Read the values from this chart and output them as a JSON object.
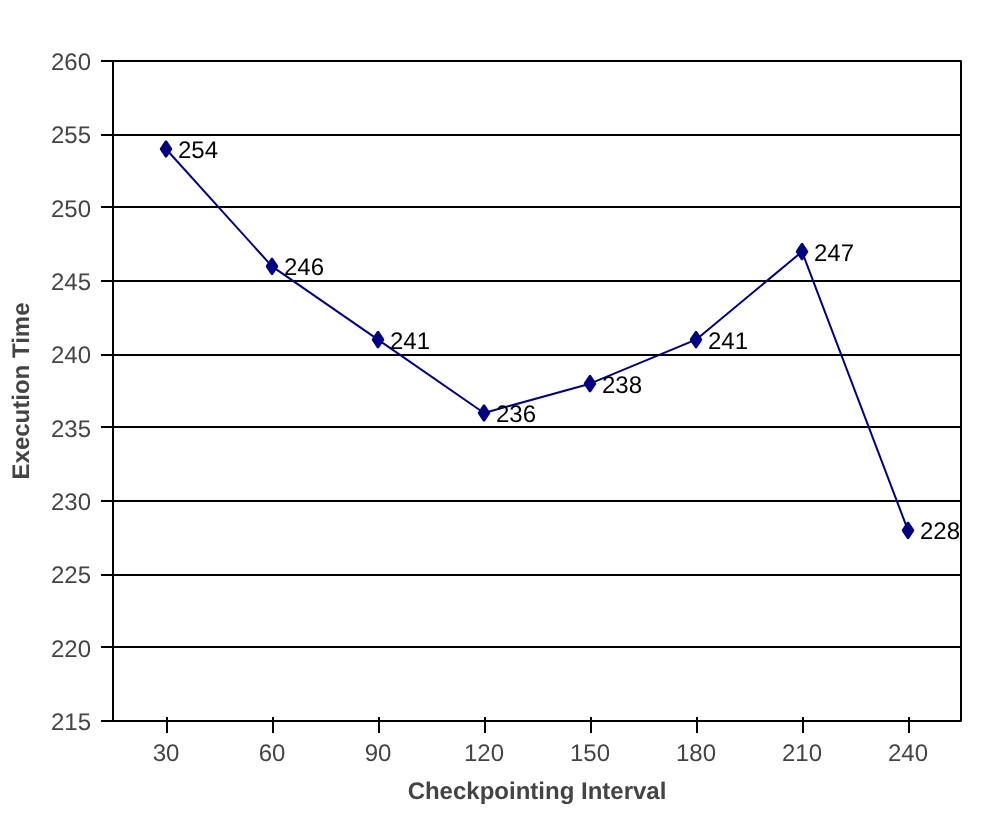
{
  "chart_data": {
    "type": "line",
    "xlabel": "Checkpointing Interval",
    "ylabel": "Execution Time",
    "categories": [
      "30",
      "60",
      "90",
      "120",
      "150",
      "180",
      "210",
      "240"
    ],
    "series": [
      {
        "color": "#000080",
        "values": [
          254,
          246,
          241,
          236,
          238,
          241,
          247,
          228
        ]
      }
    ],
    "ylim": [
      215,
      260
    ],
    "yticks": [
      215,
      220,
      225,
      230,
      235,
      240,
      245,
      250,
      255,
      260
    ],
    "grid": "y",
    "marker": "diamond",
    "line_style": "solid",
    "data_labels": true
  }
}
